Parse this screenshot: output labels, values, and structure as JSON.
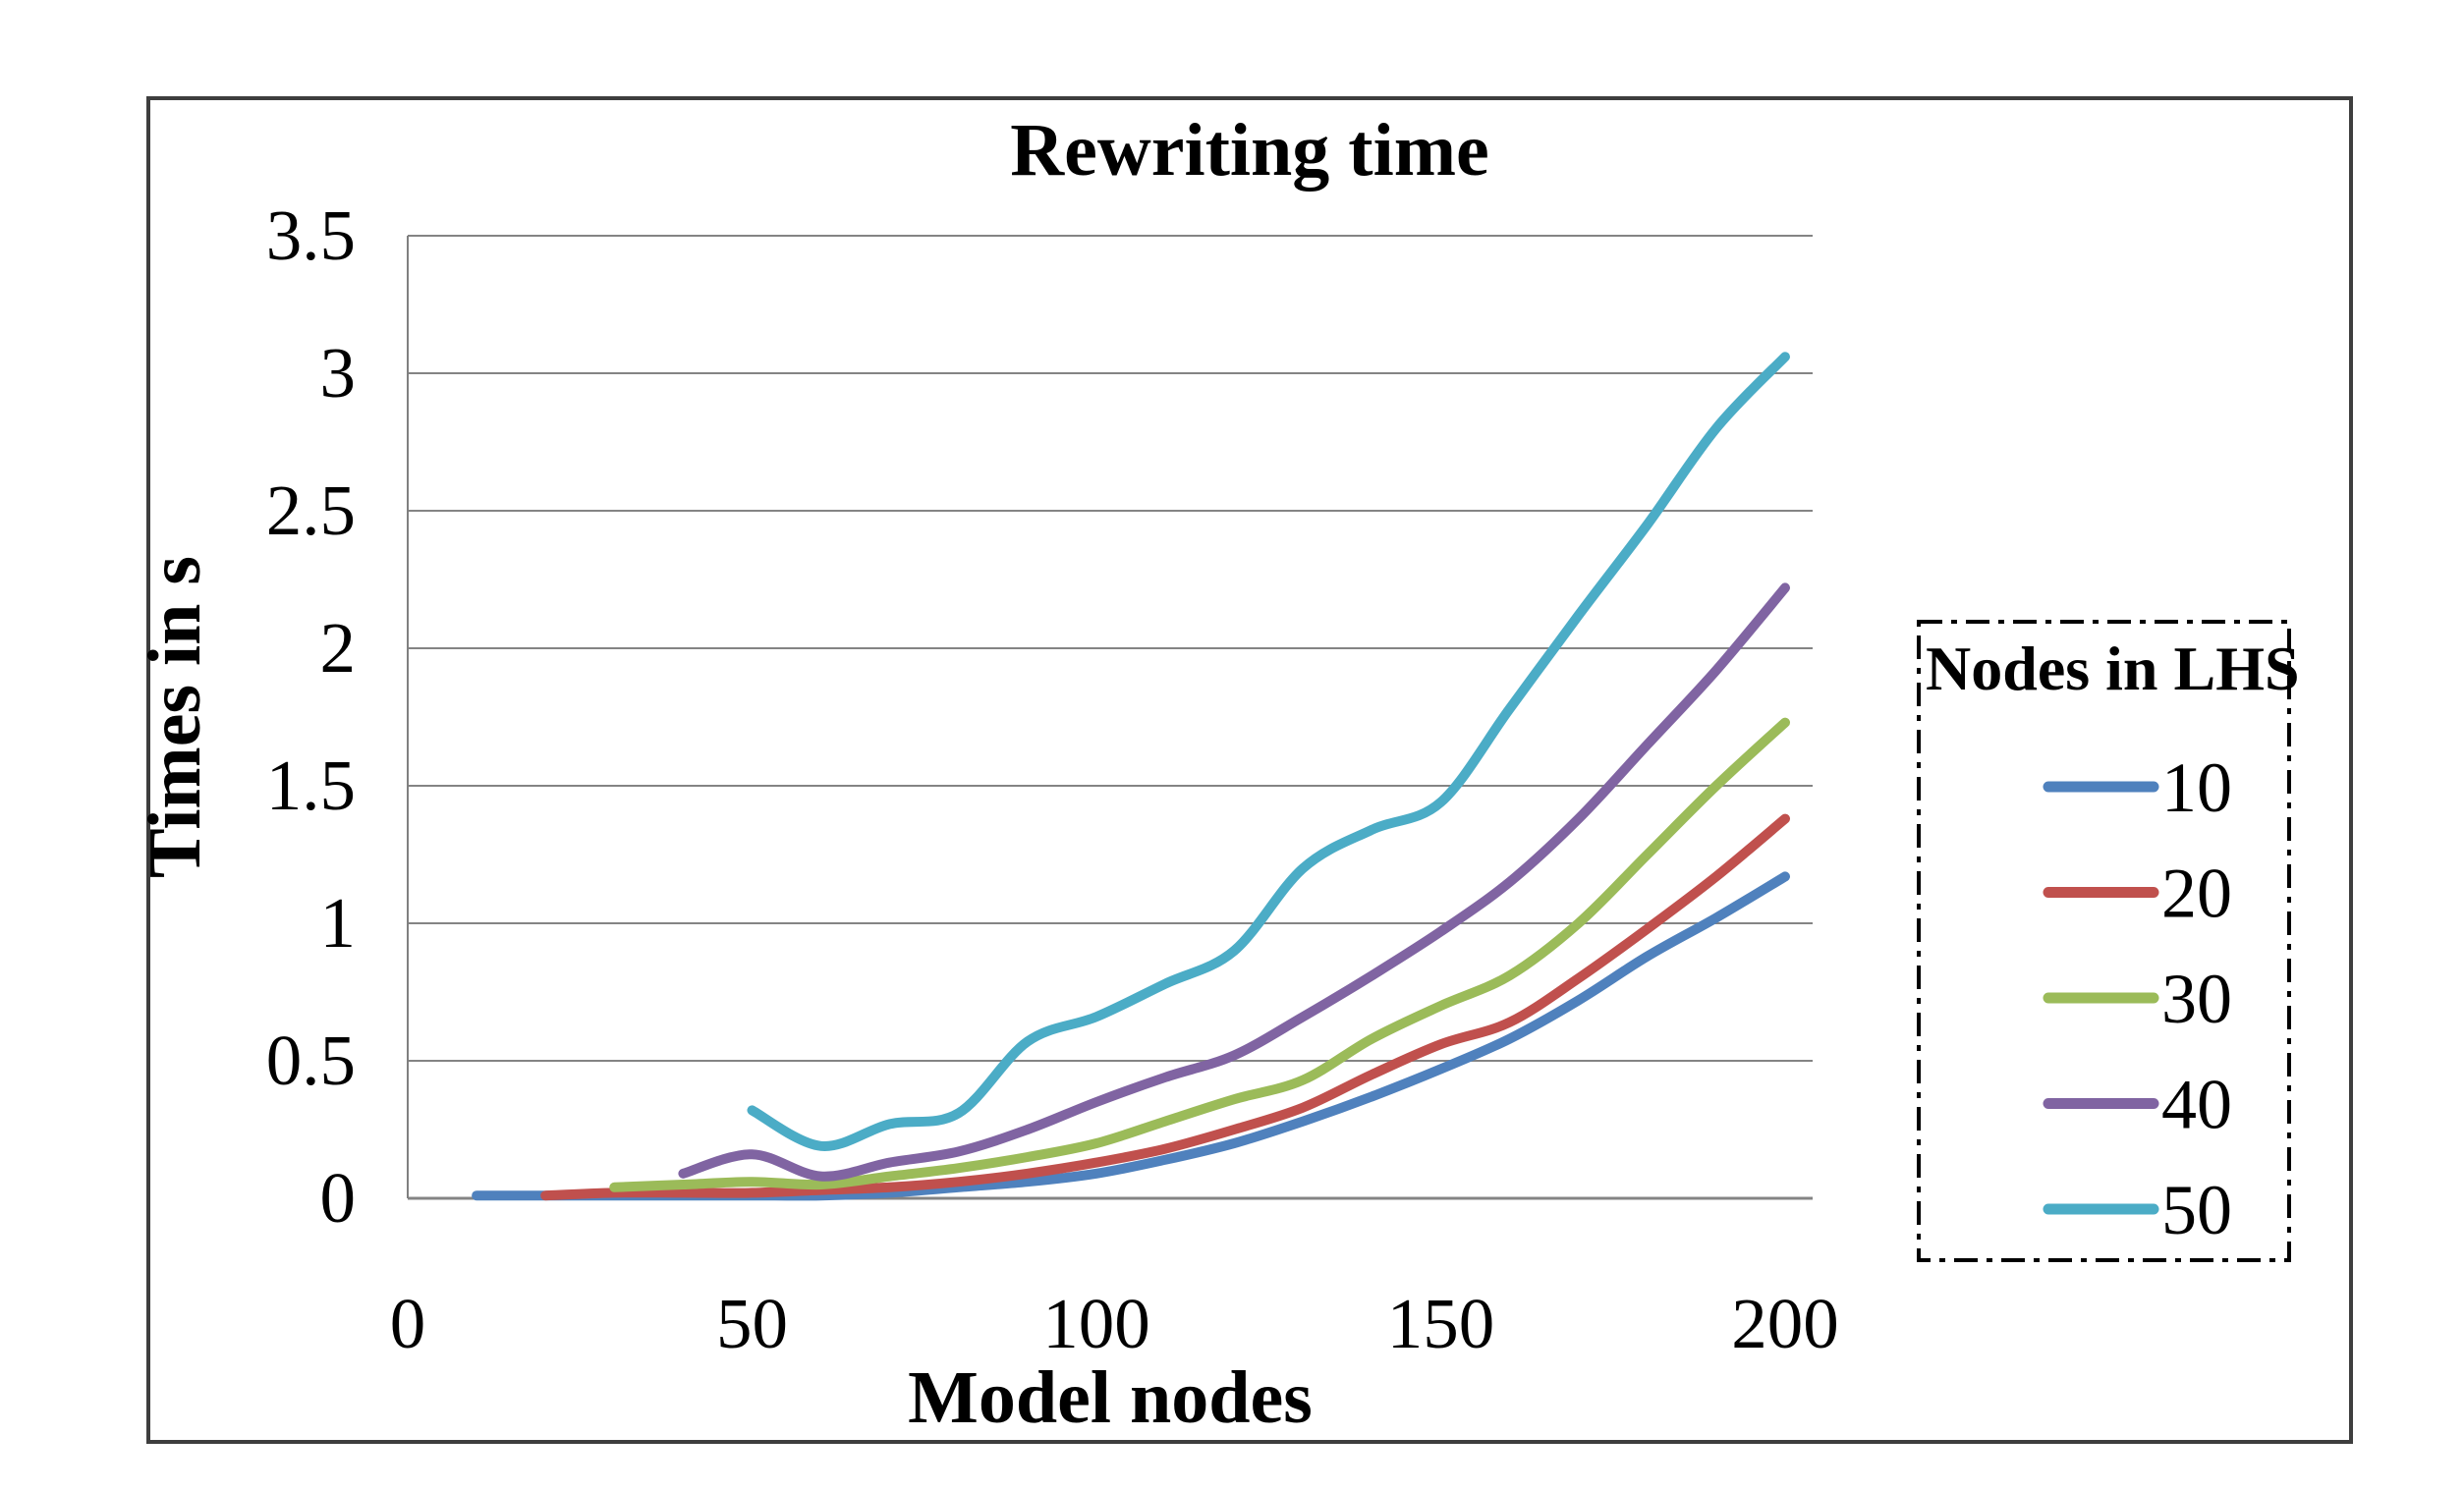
{
  "chart_data": {
    "type": "line",
    "title": "Rewriting time",
    "xlabel": "Model nodes",
    "ylabel": "Times in s",
    "xlim": [
      0,
      204
    ],
    "ylim": [
      0,
      3.5
    ],
    "x_ticks": [
      "0",
      "50",
      "100",
      "150",
      "200"
    ],
    "y_ticks": [
      "0",
      "0.5",
      "1",
      "1.5",
      "2",
      "2.5",
      "3",
      "3.5"
    ],
    "grid": "horizontal",
    "line_style": "smooth",
    "legend": {
      "title": "Nodes in LHS",
      "position": "right",
      "border": "dash-dot"
    },
    "colors": {
      "grid": "#848484",
      "axis": "#808080",
      "frame": "#3E3E3E",
      "text": "#000000",
      "background": "#FFFFFF"
    },
    "series": [
      {
        "name": "10",
        "color": "#4F81BD",
        "points": [
          [
            10,
            0.01
          ],
          [
            20,
            0.01
          ],
          [
            30,
            0.01
          ],
          [
            40,
            0.01
          ],
          [
            50,
            0.01
          ],
          [
            60,
            0.01
          ],
          [
            70,
            0.02
          ],
          [
            80,
            0.04
          ],
          [
            90,
            0.06
          ],
          [
            100,
            0.09
          ],
          [
            110,
            0.14
          ],
          [
            120,
            0.2
          ],
          [
            130,
            0.28
          ],
          [
            140,
            0.37
          ],
          [
            150,
            0.47
          ],
          [
            160,
            0.58
          ],
          [
            170,
            0.72
          ],
          [
            180,
            0.88
          ],
          [
            190,
            1.02
          ],
          [
            200,
            1.17
          ]
        ]
      },
      {
        "name": "20",
        "color": "#C0504D",
        "points": [
          [
            20,
            0.01
          ],
          [
            30,
            0.02
          ],
          [
            40,
            0.02
          ],
          [
            50,
            0.02
          ],
          [
            60,
            0.03
          ],
          [
            70,
            0.04
          ],
          [
            80,
            0.06
          ],
          [
            90,
            0.09
          ],
          [
            100,
            0.13
          ],
          [
            110,
            0.18
          ],
          [
            120,
            0.25
          ],
          [
            130,
            0.33
          ],
          [
            140,
            0.45
          ],
          [
            150,
            0.56
          ],
          [
            160,
            0.64
          ],
          [
            170,
            0.8
          ],
          [
            180,
            0.98
          ],
          [
            190,
            1.17
          ],
          [
            200,
            1.38
          ]
        ]
      },
      {
        "name": "30",
        "color": "#9BBB59",
        "points": [
          [
            30,
            0.04
          ],
          [
            40,
            0.05
          ],
          [
            50,
            0.06
          ],
          [
            60,
            0.05
          ],
          [
            70,
            0.08
          ],
          [
            80,
            0.11
          ],
          [
            90,
            0.15
          ],
          [
            100,
            0.2
          ],
          [
            110,
            0.28
          ],
          [
            120,
            0.36
          ],
          [
            130,
            0.43
          ],
          [
            140,
            0.58
          ],
          [
            150,
            0.7
          ],
          [
            160,
            0.81
          ],
          [
            170,
            1.0
          ],
          [
            180,
            1.25
          ],
          [
            190,
            1.5
          ],
          [
            200,
            1.73
          ]
        ]
      },
      {
        "name": "40",
        "color": "#8064A2",
        "points": [
          [
            40,
            0.09
          ],
          [
            50,
            0.16
          ],
          [
            60,
            0.08
          ],
          [
            70,
            0.13
          ],
          [
            80,
            0.17
          ],
          [
            90,
            0.25
          ],
          [
            100,
            0.35
          ],
          [
            110,
            0.44
          ],
          [
            120,
            0.52
          ],
          [
            130,
            0.66
          ],
          [
            140,
            0.81
          ],
          [
            150,
            0.97
          ],
          [
            160,
            1.15
          ],
          [
            170,
            1.38
          ],
          [
            180,
            1.65
          ],
          [
            190,
            1.92
          ],
          [
            200,
            2.22
          ]
        ]
      },
      {
        "name": "50",
        "color": "#4BACC6",
        "points": [
          [
            50,
            0.32
          ],
          [
            60,
            0.19
          ],
          [
            70,
            0.27
          ],
          [
            80,
            0.31
          ],
          [
            90,
            0.57
          ],
          [
            100,
            0.66
          ],
          [
            110,
            0.78
          ],
          [
            120,
            0.9
          ],
          [
            130,
            1.2
          ],
          [
            140,
            1.34
          ],
          [
            150,
            1.44
          ],
          [
            160,
            1.78
          ],
          [
            170,
            2.12
          ],
          [
            180,
            2.45
          ],
          [
            190,
            2.8
          ],
          [
            200,
            3.06
          ]
        ]
      }
    ]
  }
}
